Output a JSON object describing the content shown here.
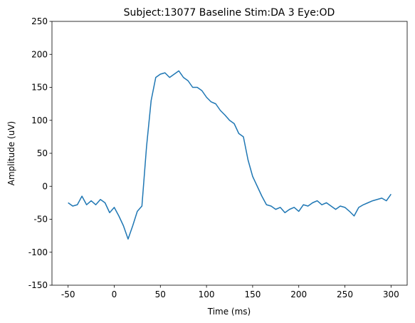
{
  "chart_data": {
    "type": "line",
    "title": "Subject:13077 Baseline Stim:DA 3 Eye:OD",
    "xlabel": "Time (ms)",
    "ylabel": "Amplitude (uV)",
    "x": [
      -50,
      -45,
      -40,
      -35,
      -30,
      -25,
      -20,
      -15,
      -10,
      -5,
      0,
      5,
      10,
      15,
      20,
      25,
      30,
      35,
      40,
      45,
      50,
      55,
      60,
      65,
      70,
      75,
      80,
      85,
      90,
      95,
      100,
      105,
      110,
      115,
      120,
      125,
      130,
      135,
      140,
      145,
      150,
      155,
      160,
      165,
      170,
      175,
      180,
      185,
      190,
      195,
      200,
      205,
      210,
      215,
      220,
      225,
      230,
      235,
      240,
      245,
      250,
      255,
      260,
      265,
      270,
      275,
      280,
      285,
      290,
      295,
      300
    ],
    "series": [
      {
        "name": "Amplitude",
        "color": "#1f77b4",
        "values": [
          -25,
          -30,
          -28,
          -15,
          -28,
          -22,
          -28,
          -20,
          -25,
          -40,
          -32,
          -45,
          -60,
          -80,
          -60,
          -38,
          -30,
          60,
          130,
          165,
          170,
          172,
          165,
          170,
          175,
          165,
          160,
          150,
          150,
          145,
          135,
          128,
          125,
          115,
          108,
          100,
          95,
          80,
          75,
          40,
          15,
          0,
          -15,
          -28,
          -30,
          -35,
          -32,
          -40,
          -35,
          -32,
          -38,
          -28,
          -30,
          -25,
          -22,
          -28,
          -25,
          -30,
          -35,
          -30,
          -32,
          -38,
          -45,
          -32,
          -28,
          -25,
          -22,
          -20,
          -18,
          -22,
          -12
        ]
      }
    ],
    "xlim": [
      -67.5,
      317.5
    ],
    "xticks": [
      -50,
      0,
      50,
      100,
      150,
      200,
      250,
      300
    ],
    "ylim": [
      -150,
      250
    ],
    "yticks": [
      -150,
      -100,
      -50,
      0,
      50,
      100,
      150,
      200,
      250
    ]
  }
}
